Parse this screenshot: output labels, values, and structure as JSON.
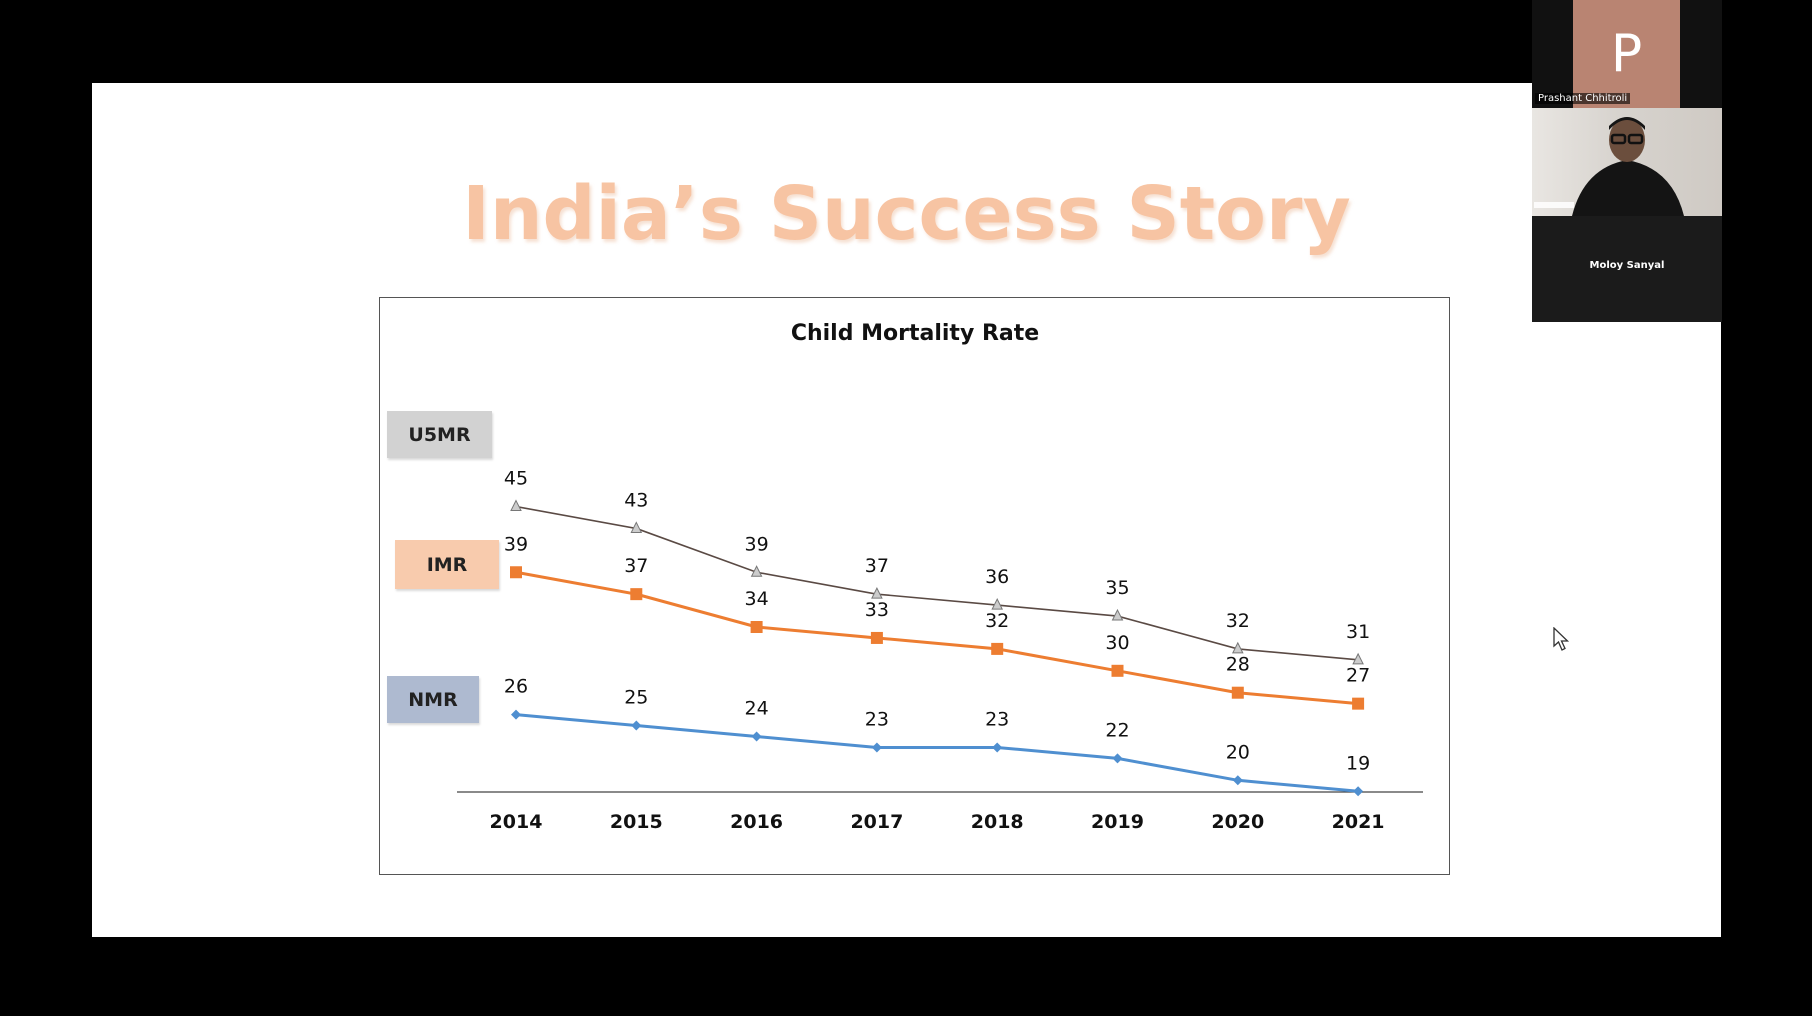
{
  "slide": {
    "title": "India’s Success Story"
  },
  "participants": {
    "tile1": {
      "avatar_letter": "P",
      "name": "Prashant Chhitroli"
    },
    "tile2": {
      "name": "Moloy Sanyal"
    }
  },
  "chart_data": {
    "type": "line",
    "title": "Child Mortality Rate",
    "x": [
      "2014",
      "2015",
      "2016",
      "2017",
      "2018",
      "2019",
      "2020",
      "2021"
    ],
    "ylim": [
      0,
      50
    ],
    "grid": false,
    "series": [
      {
        "name": "U5MR",
        "values": [
          45,
          43,
          39,
          37,
          36,
          35,
          32,
          31
        ],
        "color": "#5a4a44",
        "marker": "triangle",
        "badge_color": "#d2d2d2"
      },
      {
        "name": "IMR",
        "values": [
          39,
          37,
          34,
          33,
          32,
          30,
          28,
          27
        ],
        "color": "#ed7d31",
        "marker": "square",
        "badge_color": "#f8cbad"
      },
      {
        "name": "NMR",
        "values": [
          26,
          25,
          24,
          23,
          23,
          22,
          20,
          19
        ],
        "color": "#4f8fd0",
        "marker": "diamond",
        "badge_color": "#aebad0"
      }
    ]
  }
}
